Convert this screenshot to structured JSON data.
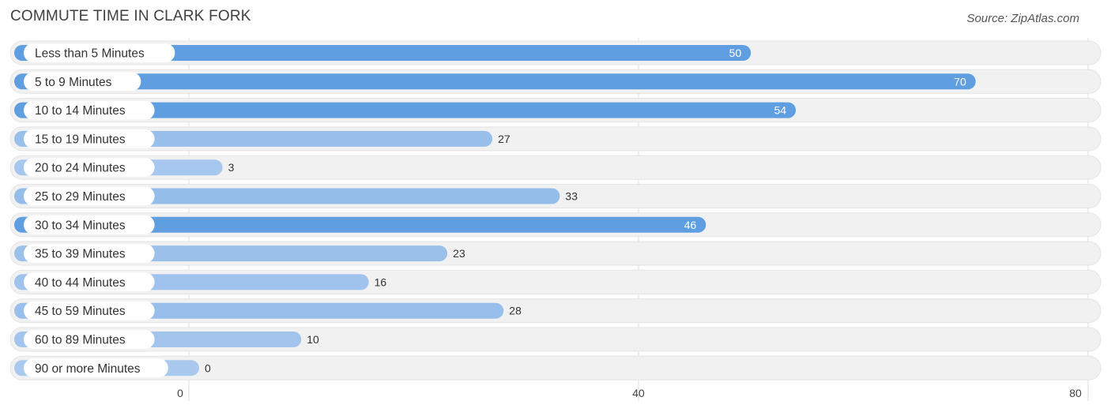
{
  "title": "COMMUTE TIME IN CLARK FORK",
  "source": "Source: ZipAtlas.com",
  "colors": {
    "bar_strong": "#5f9ee0",
    "bar_light": "#a9c9ee",
    "track": "#f1f1f1",
    "grid": "#dddddd"
  },
  "chart_data": {
    "type": "bar",
    "orientation": "horizontal",
    "title": "COMMUTE TIME IN CLARK FORK",
    "categories": [
      "Less than 5 Minutes",
      "5 to 9 Minutes",
      "10 to 14 Minutes",
      "15 to 19 Minutes",
      "20 to 24 Minutes",
      "25 to 29 Minutes",
      "30 to 34 Minutes",
      "35 to 39 Minutes",
      "40 to 44 Minutes",
      "45 to 59 Minutes",
      "60 to 89 Minutes",
      "90 or more Minutes"
    ],
    "values": [
      50,
      70,
      54,
      27,
      3,
      33,
      46,
      23,
      16,
      28,
      10,
      0
    ],
    "value_labels": [
      "50",
      "70",
      "54",
      "27",
      "3",
      "33",
      "46",
      "23",
      "16",
      "28",
      "10",
      "0"
    ],
    "xticks": [
      0,
      40,
      80
    ],
    "xtick_labels": [
      "0",
      "40",
      "80"
    ],
    "xlim": [
      0,
      80
    ],
    "grid": true
  }
}
